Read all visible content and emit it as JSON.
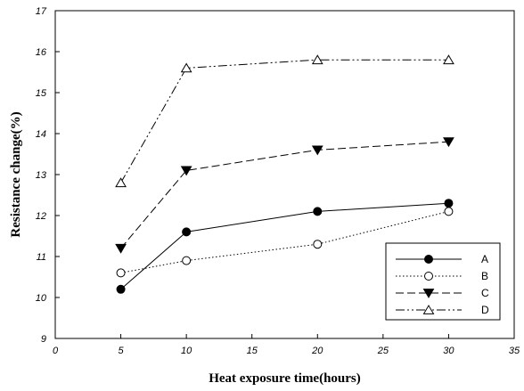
{
  "chart_data": {
    "type": "line",
    "title": "",
    "xlabel": "Heat exposure time(hours)",
    "ylabel": "Resistance change(%)",
    "xlim": [
      0,
      35
    ],
    "ylim": [
      9,
      17
    ],
    "x_ticks": [
      "0",
      "5",
      "10",
      "15",
      "20",
      "25",
      "30",
      "35"
    ],
    "y_ticks": [
      "9",
      "10",
      "11",
      "12",
      "13",
      "14",
      "15",
      "16",
      "17"
    ],
    "grid": false,
    "legend_position": "bottom-right",
    "x": [
      5,
      10,
      20,
      30
    ],
    "series": [
      {
        "name": "A",
        "values": [
          10.2,
          11.6,
          12.1,
          12.3
        ],
        "marker": "filled-circle",
        "line_style": "solid"
      },
      {
        "name": "B",
        "values": [
          10.6,
          10.9,
          11.3,
          12.1
        ],
        "marker": "open-circle",
        "line_style": "dotted"
      },
      {
        "name": "C",
        "values": [
          11.2,
          13.1,
          13.6,
          13.8
        ],
        "marker": "filled-triangle-down",
        "line_style": "dashed"
      },
      {
        "name": "D",
        "values": [
          12.8,
          15.6,
          15.8,
          15.8
        ],
        "marker": "open-triangle-up",
        "line_style": "dash-dot-dot"
      }
    ]
  }
}
